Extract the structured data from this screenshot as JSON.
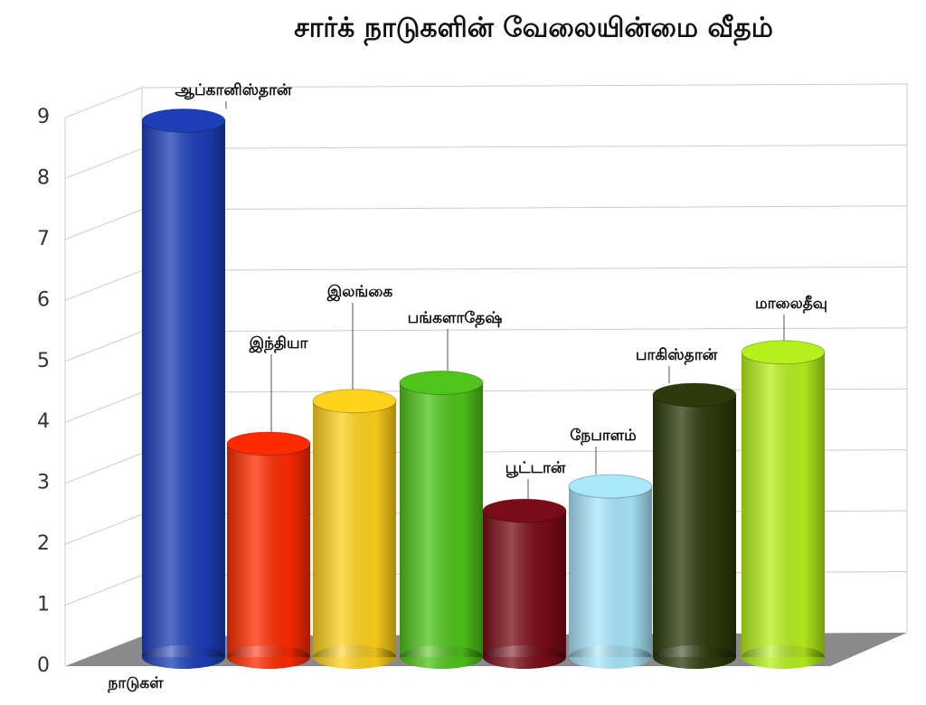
{
  "chart_data": {
    "type": "bar",
    "title": "சார்க் நாடுகளின் வேலையின்மை வீதம்",
    "x_label": "நாடுகள்",
    "categories": [
      "ஆப்கானிஸ்தான்",
      "இந்தியா",
      "இலங்கை",
      "பங்களாதேஷ்",
      "பூட்டான்",
      "நேபாளம்",
      "பாகிஸ்தான்",
      "மாலைதீவு"
    ],
    "values": [
      8.8,
      3.5,
      4.2,
      4.5,
      2.4,
      2.8,
      4.3,
      5.0
    ],
    "colors": [
      "#1c3fb8",
      "#ff2b00",
      "#ffd21c",
      "#4fc41a",
      "#7a0c18",
      "#a9e7fb",
      "#2c3b0b",
      "#b6f01c"
    ],
    "ylim": [
      0,
      9
    ],
    "yticks": [
      0,
      1,
      2,
      3,
      4,
      5,
      6,
      7,
      8,
      9
    ],
    "grid": true
  }
}
